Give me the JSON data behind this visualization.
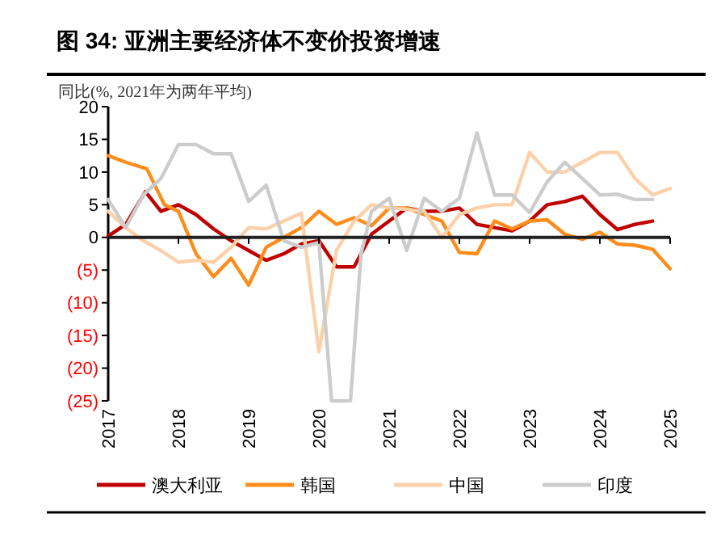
{
  "chart_data": {
    "type": "line",
    "title": "图 34: 亚洲主要经济体不变价投资增速",
    "ylabel": "同比(%, 2021年为两年平均)",
    "xlim": [
      2017,
      2025
    ],
    "xticks": [
      2017,
      2018,
      2019,
      2020,
      2021,
      2022,
      2023,
      2024,
      2025
    ],
    "ylim": [
      -25,
      20
    ],
    "yticks": [
      20,
      15,
      10,
      5,
      0,
      {
        "value": -5,
        "label": "(5)"
      },
      {
        "value": -10,
        "label": "(10)"
      },
      {
        "value": -15,
        "label": "(15)"
      },
      {
        "value": -20,
        "label": "(20)"
      },
      {
        "value": -25,
        "label": "(25)"
      }
    ],
    "legend": "bottom",
    "marker": "none",
    "line_style": "solid",
    "series": [
      {
        "name": "澳大利亚",
        "color": "#c00000",
        "x": [
          2017,
          2017.25,
          2017.53,
          2017.75,
          2018,
          2018.25,
          2018.5,
          2018.75,
          2019,
          2019.25,
          2019.5,
          2019.75,
          2020,
          2020.25,
          2020.5,
          2020.75,
          2021,
          2021.25,
          2021.5,
          2021.75,
          2022,
          2022.25,
          2022.5,
          2022.75,
          2023,
          2023.25,
          2023.5,
          2023.75,
          2024,
          2024.25,
          2024.5,
          2024.75
        ],
        "values": [
          0.2,
          2,
          7,
          4,
          5,
          3.5,
          1.3,
          -0.5,
          -2,
          -3.5,
          -2.5,
          -1,
          -0.5,
          -4.5,
          -4.5,
          0.5,
          2.5,
          4.5,
          4,
          4,
          4.5,
          2,
          1.5,
          1,
          2.5,
          5,
          5.5,
          6.3,
          3.5,
          1.2,
          2,
          2.5
        ]
      },
      {
        "name": "韩国",
        "color": "#ff8c1a",
        "x": [
          2017,
          2017.25,
          2017.55,
          2017.8,
          2018,
          2018.25,
          2018.5,
          2018.75,
          2019,
          2019.25,
          2019.5,
          2019.75,
          2020,
          2020.25,
          2020.5,
          2020.75,
          2021,
          2021.25,
          2021.5,
          2021.75,
          2022,
          2022.25,
          2022.5,
          2022.75,
          2023,
          2023.25,
          2023.5,
          2023.75,
          2024,
          2024.25,
          2024.5,
          2024.75,
          2025
        ],
        "values": [
          12.5,
          11.5,
          10.5,
          5,
          4,
          -2.5,
          -6,
          -3.2,
          -7.3,
          -1.5,
          0,
          1.5,
          4,
          2,
          3,
          1.8,
          4.5,
          4.5,
          3.5,
          2.5,
          -2.3,
          -2.5,
          2.5,
          1.3,
          2.5,
          2.7,
          0.5,
          -0.3,
          0.8,
          -1,
          -1.2,
          -1.8,
          -4.8
        ]
      },
      {
        "name": "中国",
        "color": "#fcd0a8",
        "x": [
          2017,
          2017.25,
          2017.5,
          2017.75,
          2018,
          2018.25,
          2018.5,
          2018.75,
          2019,
          2019.25,
          2019.5,
          2019.75,
          2020,
          2020.25,
          2020.5,
          2020.75,
          2021,
          2021.25,
          2021.5,
          2021.75,
          2022,
          2022.25,
          2022.5,
          2022.75,
          2023,
          2023.25,
          2023.5,
          2023.75,
          2024,
          2024.25,
          2024.5,
          2024.75,
          2025
        ],
        "values": [
          4,
          1.5,
          -0.5,
          -2,
          -3.8,
          -3.5,
          -3.8,
          -1.5,
          1.5,
          1.3,
          2.5,
          3.7,
          -17.5,
          -2,
          2.5,
          5,
          4.5,
          4.3,
          4,
          0,
          3.5,
          4.5,
          5,
          5,
          13,
          10,
          10,
          11.5,
          13,
          13,
          9,
          6.5,
          7.5
        ]
      },
      {
        "name": "印度",
        "color": "#cccccc",
        "x": [
          2017,
          2017.25,
          2017.5,
          2017.75,
          2018,
          2018.25,
          2018.5,
          2018.75,
          2019,
          2019.25,
          2019.5,
          2019.75,
          2020,
          2020.18,
          2020.45,
          2020.6,
          2020.75,
          2021,
          2021.25,
          2021.5,
          2021.75,
          2022,
          2022.25,
          2022.5,
          2022.75,
          2023,
          2023.25,
          2023.5,
          2023.75,
          2024,
          2024.25,
          2024.5,
          2024.75
        ],
        "values": [
          5.8,
          1.5,
          6.5,
          9,
          14.2,
          14.2,
          12.8,
          12.8,
          5.5,
          8,
          -0.5,
          -1.5,
          -0.8,
          -25,
          -25,
          -2.5,
          4,
          6,
          -2,
          6,
          4,
          6,
          16,
          6.5,
          6.5,
          3.8,
          8.5,
          11.5,
          9,
          6.5,
          6.6,
          5.8,
          5.8
        ]
      }
    ]
  }
}
